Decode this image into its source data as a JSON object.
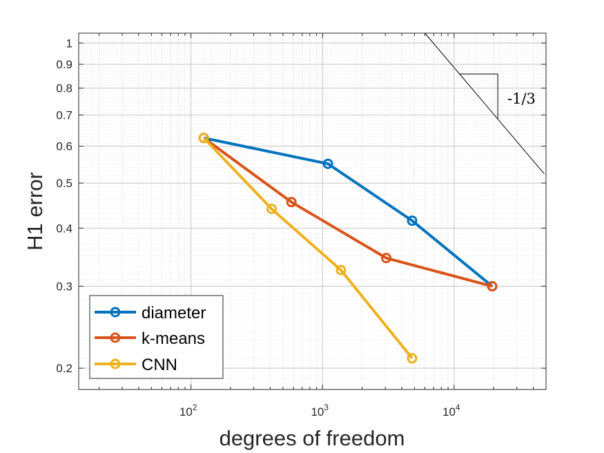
{
  "chart_data": {
    "type": "line",
    "xscale": "log",
    "yscale": "log",
    "xlabel": "degrees of freedom",
    "ylabel": "H1 error",
    "xlim": [
      14,
      50000
    ],
    "ylim": [
      0.18,
      1.05
    ],
    "xticks": [
      {
        "value": 100,
        "base": "10",
        "exp": "2"
      },
      {
        "value": 1000,
        "base": "10",
        "exp": "3"
      },
      {
        "value": 10000,
        "base": "10",
        "exp": "4"
      }
    ],
    "yticks": [
      {
        "value": 0.2,
        "label": "0.2"
      },
      {
        "value": 0.3,
        "label": "0.3"
      },
      {
        "value": 0.4,
        "label": "0.4"
      },
      {
        "value": 0.5,
        "label": "0.5"
      },
      {
        "value": 0.6,
        "label": "0.6"
      },
      {
        "value": 0.7,
        "label": "0.7"
      },
      {
        "value": 0.8,
        "label": "0.8"
      },
      {
        "value": 0.9,
        "label": "0.9"
      },
      {
        "value": 1,
        "label": "1"
      }
    ],
    "grid": true,
    "legend_position": "bottom-left",
    "series": [
      {
        "name": "diameter",
        "color": "#0072BD",
        "x": [
          125,
          1100,
          4800,
          19500
        ],
        "y": [
          0.625,
          0.55,
          0.415,
          0.3
        ]
      },
      {
        "name": "k-means",
        "color": "#D95319",
        "x": [
          125,
          580,
          3050,
          19500
        ],
        "y": [
          0.625,
          0.455,
          0.345,
          0.3
        ]
      },
      {
        "name": "CNN",
        "color": "#EDB120",
        "x": [
          125,
          410,
          1380,
          4800
        ],
        "y": [
          0.625,
          0.44,
          0.325,
          0.21
        ]
      }
    ],
    "reference_slope": {
      "label": "-1/3",
      "slope": -0.3333
    }
  }
}
